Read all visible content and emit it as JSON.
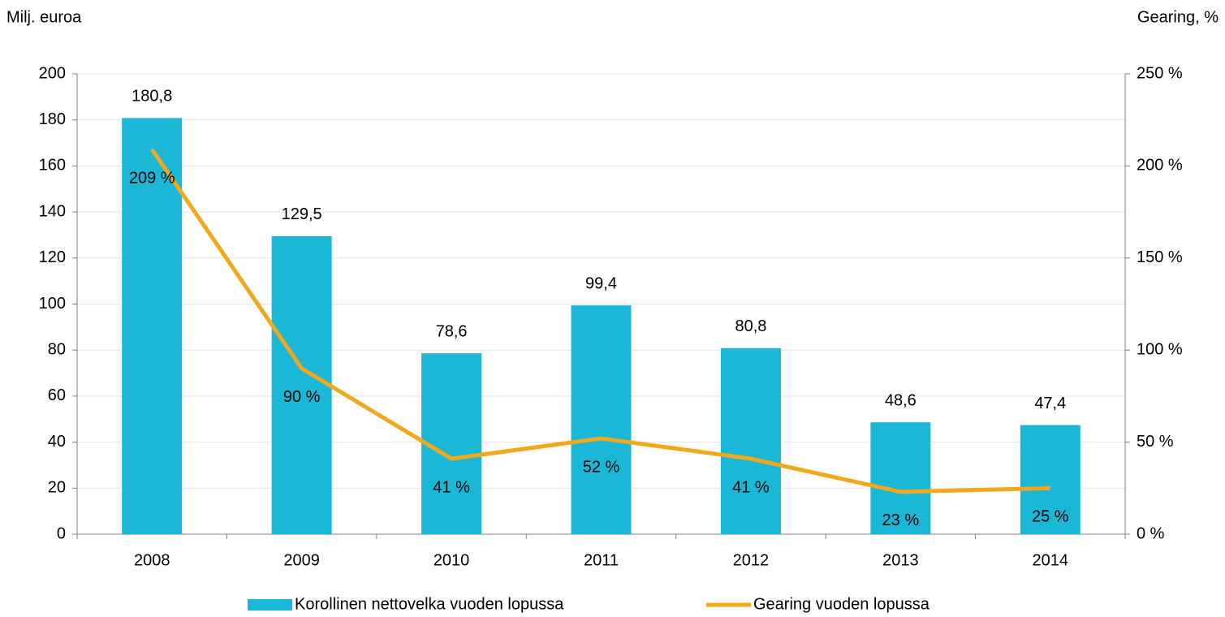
{
  "chart_data": {
    "type": "bar",
    "y_label": "Milj. euroa",
    "y2_label": "Gearing, %",
    "categories": [
      "2008",
      "2009",
      "2010",
      "2011",
      "2012",
      "2013",
      "2014"
    ],
    "series": [
      {
        "name": "Korollinen nettovelka vuoden lopussa",
        "type": "bar",
        "color": "#1ab8d6",
        "values": [
          180.8,
          129.5,
          78.6,
          99.4,
          80.8,
          48.6,
          47.4
        ],
        "value_labels": [
          "180,8",
          "129,5",
          "78,6",
          "99,4",
          "80,8",
          "48,6",
          "47,4"
        ]
      },
      {
        "name": "Gearing vuoden lopussa",
        "type": "line",
        "axis": "y2",
        "color": "#f0a81c",
        "values": [
          209,
          90,
          41,
          52,
          41,
          23,
          25
        ],
        "value_labels": [
          "209 %",
          "90 %",
          "41 %",
          "52 %",
          "41 %",
          "23 %",
          "25 %"
        ]
      }
    ],
    "ylim": [
      0,
      200
    ],
    "yticks": [
      0,
      20,
      40,
      60,
      80,
      100,
      120,
      140,
      160,
      180,
      200
    ],
    "y2lim": [
      0,
      250
    ],
    "y2ticks": [
      {
        "value": 0,
        "label": "0 %"
      },
      {
        "value": 50,
        "label": "50 %"
      },
      {
        "value": 100,
        "label": "100 %"
      },
      {
        "value": 150,
        "label": "150 %"
      },
      {
        "value": 200,
        "label": "200 %"
      },
      {
        "value": 250,
        "label": "250 %"
      }
    ],
    "grid": true,
    "legend": "bottom"
  }
}
